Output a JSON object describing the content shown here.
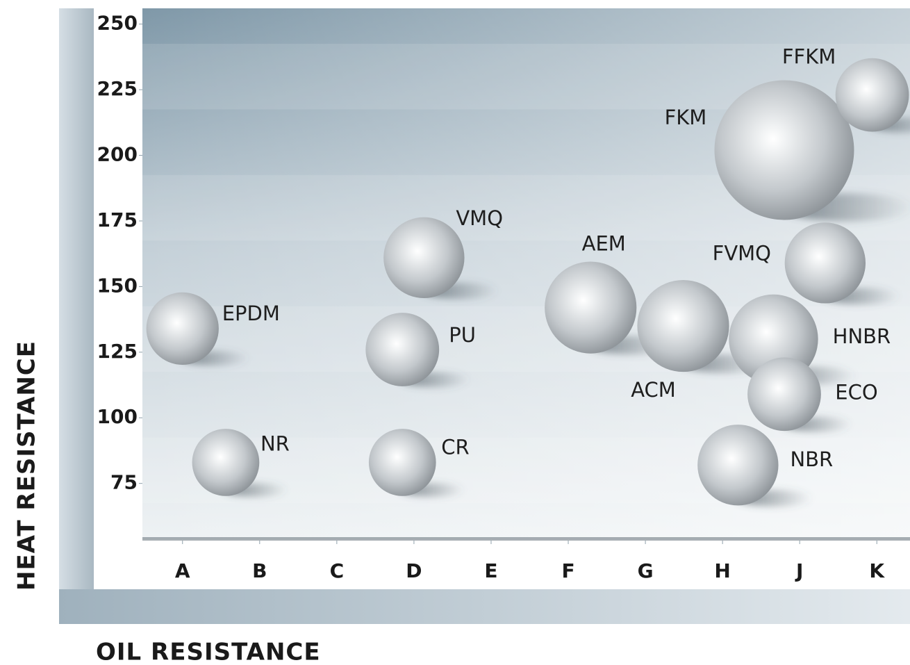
{
  "chart_data": {
    "type": "bubble",
    "x_label": "OIL RESISTANCE",
    "y_label": "HEAT RESISTANCE",
    "xlim": [
      0.48,
      10.43
    ],
    "ylim": [
      54,
      256
    ],
    "xticks": [
      {
        "value": 1,
        "label": "A"
      },
      {
        "value": 2,
        "label": "B"
      },
      {
        "value": 3,
        "label": "C"
      },
      {
        "value": 4,
        "label": "D"
      },
      {
        "value": 5,
        "label": "E"
      },
      {
        "value": 6,
        "label": "F"
      },
      {
        "value": 7,
        "label": "G"
      },
      {
        "value": 8,
        "label": "H"
      },
      {
        "value": 9,
        "label": "J"
      },
      {
        "value": 10,
        "label": "K"
      }
    ],
    "yticks": [
      75,
      100,
      125,
      150,
      175,
      200,
      225,
      250
    ],
    "color": "#c3c8cc",
    "labels": [
      "EPDM",
      "NR",
      "VMQ",
      "PU",
      "CR",
      "AEM",
      "ACM",
      "FKM",
      "FFKM",
      "FVMQ",
      "HNBR",
      "ECO",
      "NBR"
    ],
    "x": [
      1.0,
      1.56,
      4.13,
      3.85,
      3.85,
      6.29,
      7.49,
      8.8,
      9.94,
      9.33,
      8.66,
      8.8,
      8.2
    ],
    "y": [
      134,
      83,
      161,
      126,
      83,
      142,
      135,
      202,
      223,
      159,
      130,
      109,
      82
    ],
    "sizes": [
      13.8,
      12.8,
      15.4,
      14,
      12.8,
      17.5,
      17.5,
      26.6,
      14,
      15.4,
      17,
      14,
      15.4
    ]
  }
}
